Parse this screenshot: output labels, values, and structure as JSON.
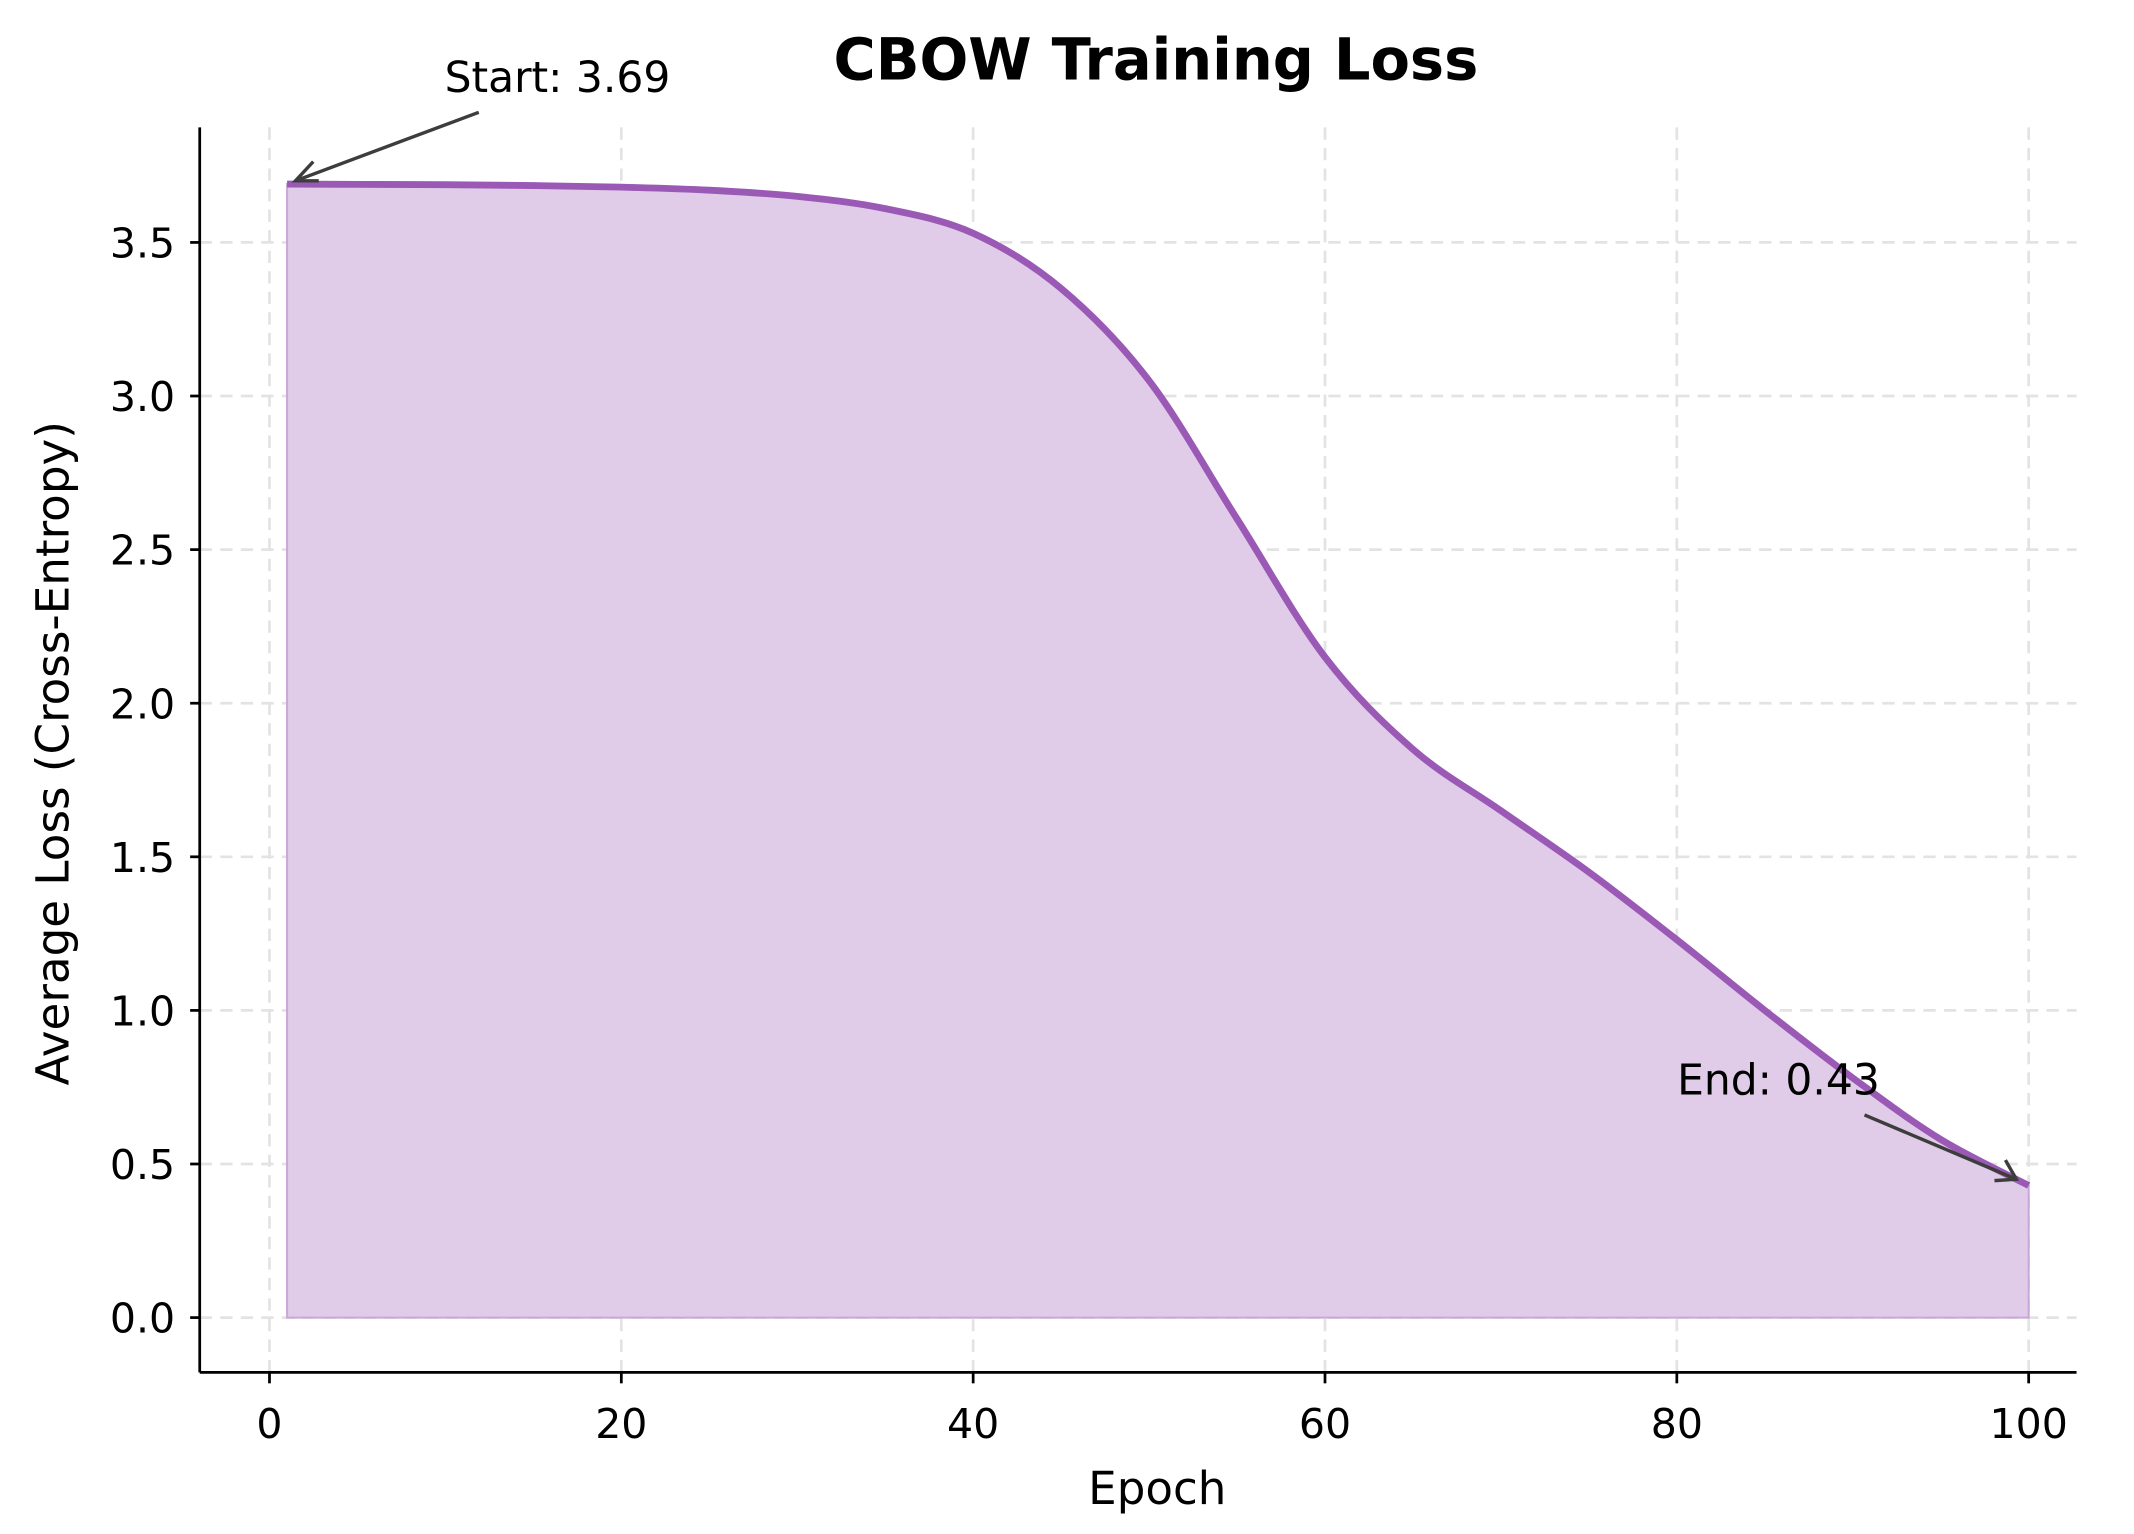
{
  "chart_data": {
    "type": "area",
    "title": "CBOW Training Loss",
    "xlabel": "Epoch",
    "ylabel": "Average Loss (Cross-Entropy)",
    "xlim": [
      -4,
      105
    ],
    "ylim": [
      -0.18,
      3.88
    ],
    "grid": true,
    "legend": null,
    "x_ticks": [
      0,
      20,
      40,
      60,
      80,
      100
    ],
    "x_tick_labels": [
      "0",
      "20",
      "40",
      "60",
      "80",
      "100"
    ],
    "y_ticks": [
      0.0,
      0.5,
      1.0,
      1.5,
      2.0,
      2.5,
      3.0,
      3.5
    ],
    "y_tick_labels": [
      "0.0",
      "0.5",
      "1.0",
      "1.5",
      "2.0",
      "2.5",
      "3.0",
      "3.5"
    ],
    "series": [
      {
        "name": "Average Loss",
        "color": "#9b59b6",
        "fill_color": "#e0cce8",
        "x": [
          1,
          5,
          10,
          15,
          20,
          25,
          30,
          35,
          40,
          45,
          50,
          55,
          60,
          65,
          70,
          75,
          80,
          85,
          90,
          95,
          100
        ],
        "values": [
          3.69,
          3.689,
          3.688,
          3.685,
          3.68,
          3.67,
          3.65,
          3.61,
          3.53,
          3.35,
          3.05,
          2.6,
          2.15,
          1.85,
          1.65,
          1.45,
          1.23,
          1.0,
          0.78,
          0.58,
          0.43
        ]
      }
    ],
    "annotations": [
      {
        "text": "Start: 3.69",
        "x": 1,
        "y": 3.69
      },
      {
        "text": "End: 0.43",
        "x": 100,
        "y": 0.43
      }
    ]
  }
}
